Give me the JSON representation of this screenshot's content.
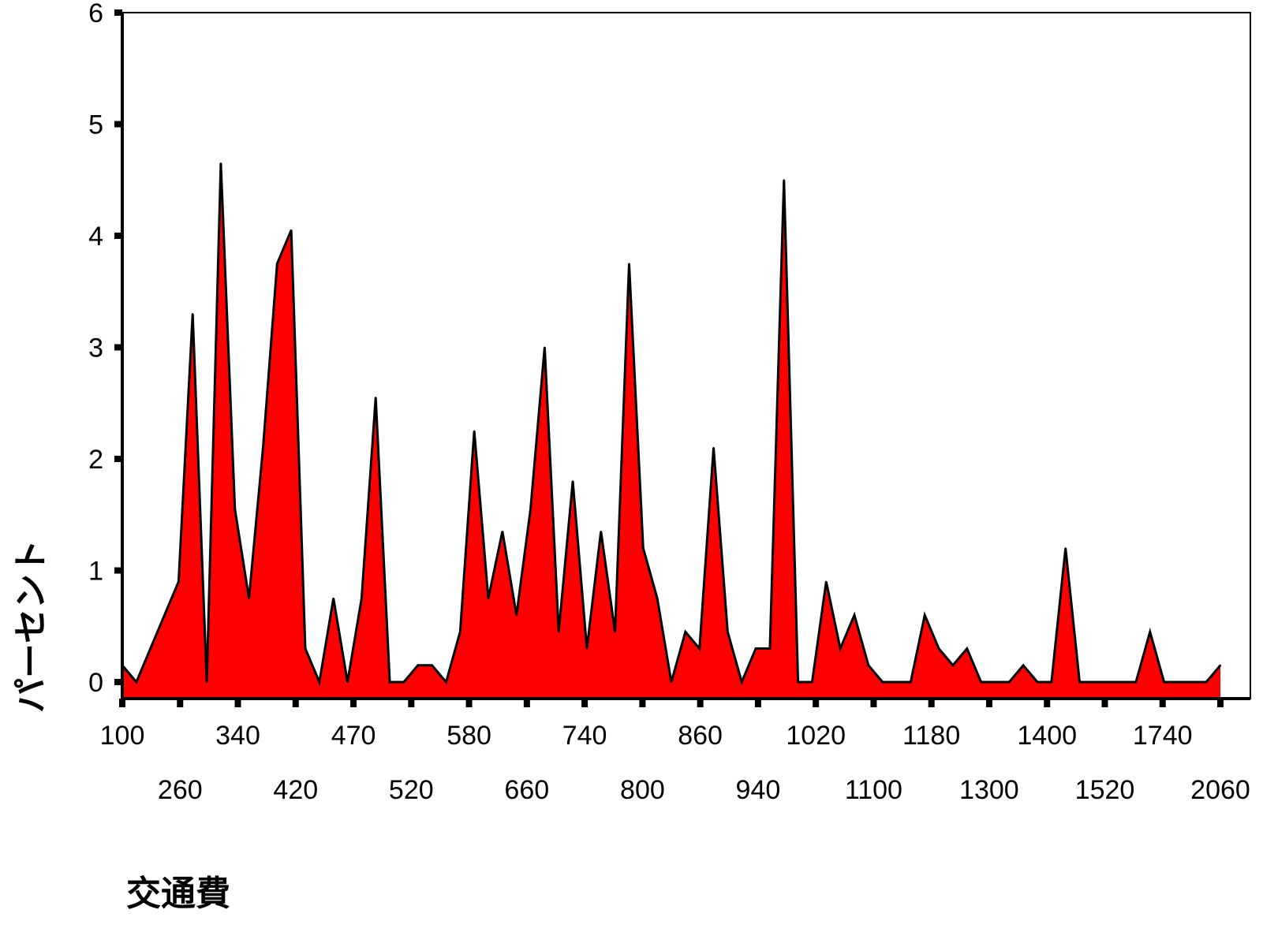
{
  "chart_data": {
    "type": "area",
    "xlabel": "交通費",
    "ylabel": "パーセント",
    "ylim": [
      0,
      6
    ],
    "yticks": [
      0,
      1,
      2,
      3,
      4,
      5,
      6
    ],
    "grid": false,
    "fill_color": "#ff0000",
    "line_color": "#000000",
    "x_tick_labels_row1": [
      "100",
      "340",
      "470",
      "580",
      "740",
      "860",
      "1020",
      "1180",
      "1400",
      "1740"
    ],
    "x_tick_labels_row2": [
      "260",
      "420",
      "520",
      "660",
      "800",
      "940",
      "1100",
      "1300",
      "1520",
      "2060"
    ],
    "values": [
      0.15,
      0.0,
      0.3,
      0.6,
      0.9,
      3.3,
      0.0,
      4.65,
      1.55,
      0.75,
      2.1,
      3.75,
      4.05,
      0.3,
      0.0,
      0.75,
      0.0,
      0.75,
      2.55,
      0.0,
      0.0,
      0.15,
      0.15,
      0.0,
      0.45,
      2.25,
      0.75,
      1.35,
      0.6,
      1.55,
      3.0,
      0.45,
      1.8,
      0.3,
      1.35,
      0.45,
      3.75,
      1.2,
      0.75,
      0.0,
      0.45,
      0.3,
      2.1,
      0.45,
      0.0,
      0.3,
      0.3,
      4.5,
      0.0,
      0.0,
      0.9,
      0.3,
      0.6,
      0.15,
      0.0,
      0.0,
      0.0,
      0.6,
      0.3,
      0.15,
      0.3,
      0.0,
      0.0,
      0.0,
      0.15,
      0.0,
      0.0,
      1.2,
      0.0,
      0.0,
      0.0,
      0.0,
      0.0,
      0.45,
      0.0,
      0.0,
      0.0,
      0.0,
      0.15
    ]
  }
}
